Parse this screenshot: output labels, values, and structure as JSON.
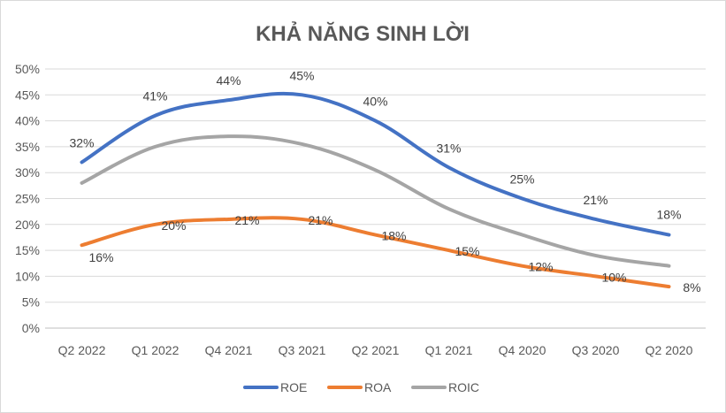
{
  "chart_data": {
    "type": "line",
    "title": "KHẢ NĂNG SINH LỜI",
    "xlabel": "",
    "ylabel": "",
    "categories": [
      "Q2 2022",
      "Q1 2022",
      "Q4 2021",
      "Q3 2021",
      "Q2 2021",
      "Q1 2021",
      "Q4 2020",
      "Q3 2020",
      "Q2 2020"
    ],
    "ylim": [
      0,
      50
    ],
    "yticks": [
      "0%",
      "5%",
      "10%",
      "15%",
      "20%",
      "25%",
      "30%",
      "35%",
      "40%",
      "45%",
      "50%"
    ],
    "grid": true,
    "legend_position": "bottom",
    "series": [
      {
        "name": "ROE",
        "color": "#4472C4",
        "values": [
          32,
          41,
          44,
          45,
          40,
          31,
          25,
          21,
          18
        ],
        "labels": [
          "32%",
          "41%",
          "44%",
          "45%",
          "40%",
          "31%",
          "25%",
          "21%",
          "18%"
        ]
      },
      {
        "name": "ROA",
        "color": "#ED7D31",
        "values": [
          16,
          20,
          21,
          21,
          18,
          15,
          12,
          10,
          8
        ],
        "labels": [
          "16%",
          "20%",
          "21%",
          "21%",
          "18%",
          "15%",
          "12%",
          "10%",
          "8%"
        ]
      },
      {
        "name": "ROIC",
        "color": "#A5A5A5",
        "values": [
          28,
          35,
          37,
          35.5,
          30.5,
          23,
          18,
          14,
          12
        ],
        "labels": []
      }
    ]
  }
}
